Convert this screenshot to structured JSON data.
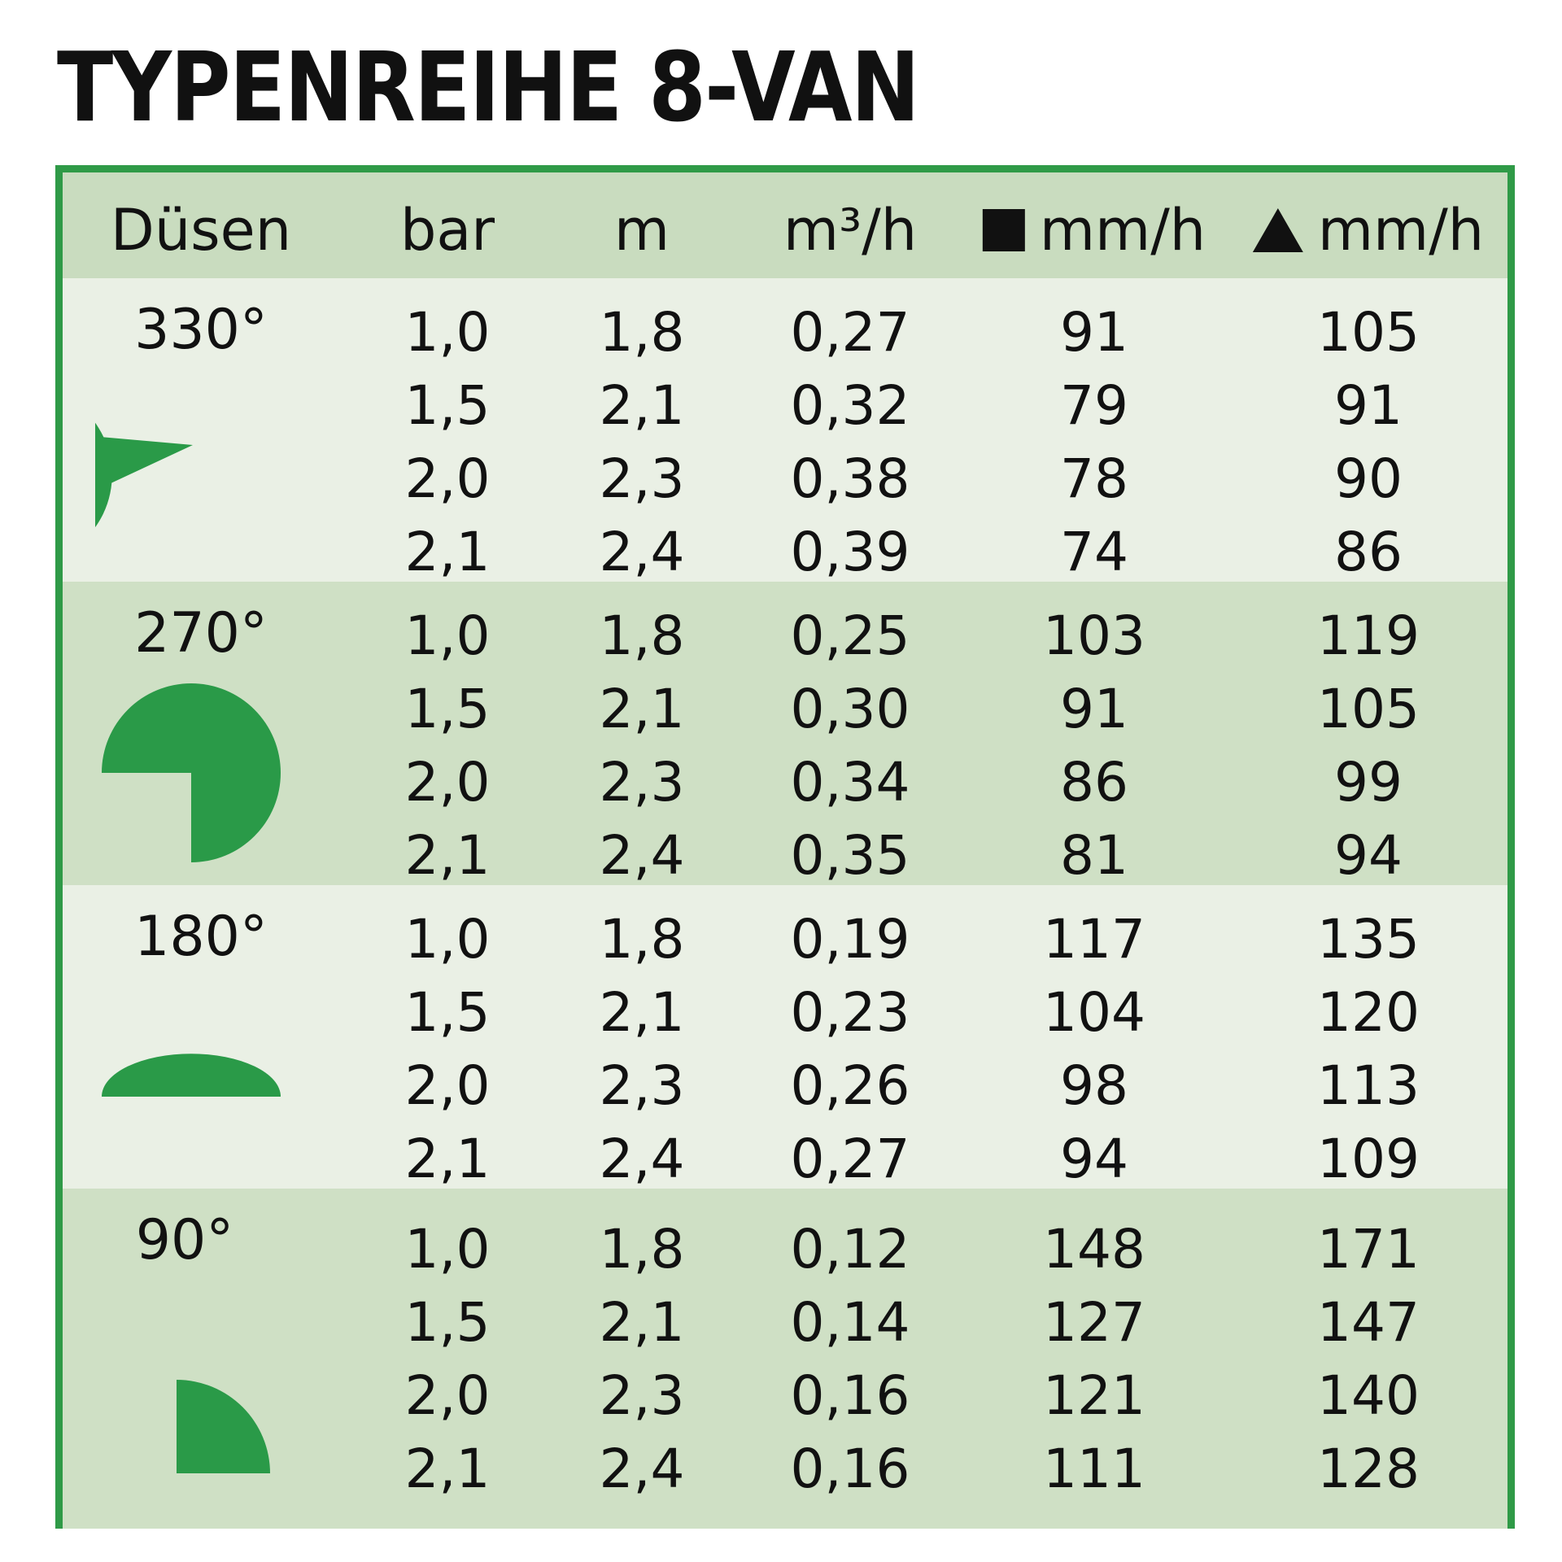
{
  "title": "TYPENREIHE 8-VAN",
  "colors": {
    "frame": "#2f9a47",
    "sector": "#2a9a48",
    "band_light": "#eaf0e5",
    "band_dark": "#cfe0c5"
  },
  "headers": {
    "duesen": "Düsen",
    "bar": "bar",
    "m": "m",
    "flow": "m³/h",
    "square_rate": "mm/h",
    "triangle_rate": "mm/h",
    "square_icon": "square-icon",
    "triangle_icon": "triangle-icon"
  },
  "groups": [
    {
      "angle": "330°",
      "sector_degrees": 330,
      "rows": [
        {
          "bar": "1,0",
          "m": "1,8",
          "flow": "0,27",
          "sq": "91",
          "tri": "105"
        },
        {
          "bar": "1,5",
          "m": "2,1",
          "flow": "0,32",
          "sq": "79",
          "tri": "91"
        },
        {
          "bar": "2,0",
          "m": "2,3",
          "flow": "0,38",
          "sq": "78",
          "tri": "90"
        },
        {
          "bar": "2,1",
          "m": "2,4",
          "flow": "0,39",
          "sq": "74",
          "tri": "86"
        }
      ]
    },
    {
      "angle": "270°",
      "sector_degrees": 270,
      "rows": [
        {
          "bar": "1,0",
          "m": "1,8",
          "flow": "0,25",
          "sq": "103",
          "tri": "119"
        },
        {
          "bar": "1,5",
          "m": "2,1",
          "flow": "0,30",
          "sq": "91",
          "tri": "105"
        },
        {
          "bar": "2,0",
          "m": "2,3",
          "flow": "0,34",
          "sq": "86",
          "tri": "99"
        },
        {
          "bar": "2,1",
          "m": "2,4",
          "flow": "0,35",
          "sq": "81",
          "tri": "94"
        }
      ]
    },
    {
      "angle": "180°",
      "sector_degrees": 180,
      "rows": [
        {
          "bar": "1,0",
          "m": "1,8",
          "flow": "0,19",
          "sq": "117",
          "tri": "135"
        },
        {
          "bar": "1,5",
          "m": "2,1",
          "flow": "0,23",
          "sq": "104",
          "tri": "120"
        },
        {
          "bar": "2,0",
          "m": "2,3",
          "flow": "0,26",
          "sq": "98",
          "tri": "113"
        },
        {
          "bar": "2,1",
          "m": "2,4",
          "flow": "0,27",
          "sq": "94",
          "tri": "109"
        }
      ]
    },
    {
      "angle": "90°",
      "sector_degrees": 90,
      "rows": [
        {
          "bar": "1,0",
          "m": "1,8",
          "flow": "0,12",
          "sq": "148",
          "tri": "171"
        },
        {
          "bar": "1,5",
          "m": "2,1",
          "flow": "0,14",
          "sq": "127",
          "tri": "147"
        },
        {
          "bar": "2,0",
          "m": "2,3",
          "flow": "0,16",
          "sq": "121",
          "tri": "140"
        },
        {
          "bar": "2,1",
          "m": "2,4",
          "flow": "0,16",
          "sq": "111",
          "tri": "128"
        }
      ]
    }
  ]
}
